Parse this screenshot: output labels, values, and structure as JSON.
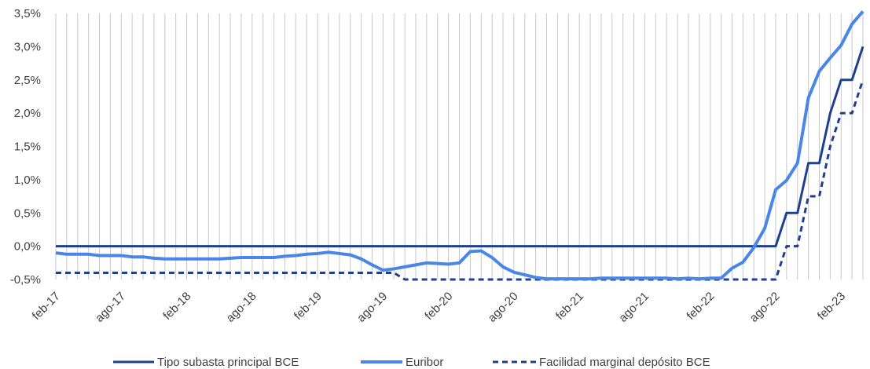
{
  "chart_data": {
    "type": "line",
    "title": "",
    "xlabel": "",
    "ylabel": "",
    "ylim": [
      -0.5,
      3.5
    ],
    "y_ticks": [
      -0.5,
      0.0,
      0.5,
      1.0,
      1.5,
      2.0,
      2.5,
      3.0,
      3.5
    ],
    "y_tick_labels": [
      "-0,5%",
      "0,0%",
      "0,5%",
      "1,0%",
      "1,5%",
      "2,0%",
      "2,5%",
      "3,0%",
      "3,5%"
    ],
    "x_tick_labels": [
      "feb-17",
      "ago-17",
      "feb-18",
      "ago-18",
      "feb-19",
      "ago-19",
      "feb-20",
      "ago-20",
      "feb-21",
      "ago-21",
      "feb-22",
      "ago-22",
      "feb-23"
    ],
    "x_start": "2017-02",
    "x_end": "2023-02",
    "grid": "vertical",
    "legend_position": "bottom",
    "series": [
      {
        "name": "Tipo subasta principal BCE",
        "color": "#1f3f8f",
        "style": "solid",
        "values": [
          0,
          0,
          0,
          0,
          0,
          0,
          0,
          0,
          0,
          0,
          0,
          0,
          0,
          0,
          0,
          0,
          0,
          0,
          0,
          0,
          0,
          0,
          0,
          0,
          0,
          0,
          0,
          0,
          0,
          0,
          0,
          0,
          0,
          0,
          0,
          0,
          0,
          0,
          0,
          0,
          0,
          0,
          0,
          0,
          0,
          0,
          0,
          0,
          0,
          0,
          0,
          0,
          0,
          0,
          0,
          0,
          0,
          0,
          0,
          0,
          0,
          0,
          0,
          0,
          0,
          0,
          0,
          0.5,
          0.5,
          1.25,
          1.25,
          2.0,
          2.5,
          2.5,
          3.0
        ]
      },
      {
        "name": "Euribor",
        "color": "#4a86e8",
        "style": "solid",
        "values": [
          -0.1,
          -0.12,
          -0.12,
          -0.12,
          -0.14,
          -0.14,
          -0.14,
          -0.16,
          -0.16,
          -0.18,
          -0.19,
          -0.19,
          -0.19,
          -0.19,
          -0.19,
          -0.19,
          -0.18,
          -0.17,
          -0.17,
          -0.17,
          -0.17,
          -0.15,
          -0.14,
          -0.12,
          -0.11,
          -0.09,
          -0.11,
          -0.13,
          -0.19,
          -0.28,
          -0.36,
          -0.34,
          -0.31,
          -0.28,
          -0.25,
          -0.26,
          -0.27,
          -0.25,
          -0.08,
          -0.07,
          -0.17,
          -0.31,
          -0.39,
          -0.43,
          -0.47,
          -0.49,
          -0.49,
          -0.49,
          -0.49,
          -0.49,
          -0.48,
          -0.48,
          -0.48,
          -0.48,
          -0.48,
          -0.48,
          -0.48,
          -0.49,
          -0.48,
          -0.49,
          -0.48,
          -0.48,
          -0.33,
          -0.24,
          -0.02,
          0.27,
          0.85,
          0.99,
          1.25,
          2.23,
          2.63,
          2.83,
          3.02,
          3.34,
          3.53
        ]
      },
      {
        "name": "Facilidad marginal depósito BCE",
        "color": "#1f3f8f",
        "style": "dashed",
        "values": [
          -0.4,
          -0.4,
          -0.4,
          -0.4,
          -0.4,
          -0.4,
          -0.4,
          -0.4,
          -0.4,
          -0.4,
          -0.4,
          -0.4,
          -0.4,
          -0.4,
          -0.4,
          -0.4,
          -0.4,
          -0.4,
          -0.4,
          -0.4,
          -0.4,
          -0.4,
          -0.4,
          -0.4,
          -0.4,
          -0.4,
          -0.4,
          -0.4,
          -0.4,
          -0.4,
          -0.4,
          -0.4,
          -0.5,
          -0.5,
          -0.5,
          -0.5,
          -0.5,
          -0.5,
          -0.5,
          -0.5,
          -0.5,
          -0.5,
          -0.5,
          -0.5,
          -0.5,
          -0.5,
          -0.5,
          -0.5,
          -0.5,
          -0.5,
          -0.5,
          -0.5,
          -0.5,
          -0.5,
          -0.5,
          -0.5,
          -0.5,
          -0.5,
          -0.5,
          -0.5,
          -0.5,
          -0.5,
          -0.5,
          -0.5,
          -0.5,
          -0.5,
          -0.5,
          0.0,
          0.0,
          0.75,
          0.75,
          1.5,
          2.0,
          2.0,
          2.5
        ]
      }
    ]
  }
}
